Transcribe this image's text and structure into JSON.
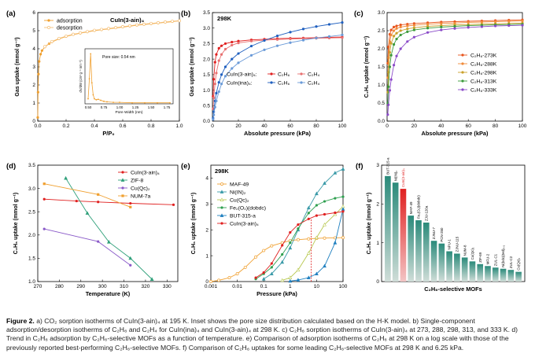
{
  "caption": {
    "label": "Figure 2.",
    "text": "a) CO₂ sorption isotherms of CuIn(3-ain)₄ at 195 K. Inset shows the pore size distribution calculated based on the H-K model. b) Single-component adsorption/desorption isotherms of C₂H₆ and C₂H₄ for CuIn(ina)₄ and CuIn(3-ain)₄ at 298 K. c) C₂H₆ sorption isotherms of CuIn(3-ain)₄ at 273, 288, 298, 313, and 333 K. d) Trend in C₂H₆ adsorption by C₂H₆-selective MOFs as a function of temperature. e) Comparison of adsorption isotherms of C₂H₆ at 298 K on a log scale with those of the previously reported best-performing C₂H₆-selective MOFs. f) Comparison of C₂H₆ uptakes for some leading C₂H₆-selective MOFs at 298 K and 6.25 kPa."
  },
  "chart_data": [
    {
      "panel": "a",
      "type": "line",
      "annotation": "CuIn(3-ain)₄",
      "xlabel": "P/P₀",
      "ylabel": "Gas uptake (mmol g⁻¹)",
      "xlim": [
        0,
        1.0
      ],
      "ylim": [
        0,
        6
      ],
      "xticks": [
        "0.0",
        "0.2",
        "0.4",
        "0.6",
        "0.8",
        "1.0"
      ],
      "yticks": [
        "0",
        "1",
        "2",
        "3",
        "4",
        "5",
        "6"
      ],
      "legend_position": "top-left",
      "colors": {
        "adsorption": "#f0a030",
        "desorption": "#f5c17a"
      },
      "series": [
        {
          "name": "adsorption",
          "marker": "filled-circle",
          "x": [
            0.0,
            0.002,
            0.005,
            0.01,
            0.02,
            0.03,
            0.05,
            0.08,
            0.1,
            0.15,
            0.2,
            0.25,
            0.3,
            0.35,
            0.4,
            0.45,
            0.5,
            0.55,
            0.6,
            0.65,
            0.7,
            0.75,
            0.8,
            0.85,
            0.9,
            0.95,
            1.0
          ],
          "y": [
            0.2,
            1.6,
            2.6,
            3.3,
            3.7,
            3.9,
            4.1,
            4.28,
            4.38,
            4.55,
            4.68,
            4.78,
            4.86,
            4.93,
            5.0,
            5.05,
            5.1,
            5.15,
            5.2,
            5.25,
            5.3,
            5.34,
            5.38,
            5.42,
            5.46,
            5.5,
            5.55
          ]
        },
        {
          "name": "desorption",
          "marker": "open-circle",
          "x": [
            1.0,
            0.95,
            0.9,
            0.85,
            0.8,
            0.75,
            0.7,
            0.65,
            0.6,
            0.55,
            0.5,
            0.45,
            0.4,
            0.35,
            0.3,
            0.25,
            0.2,
            0.15,
            0.1,
            0.05
          ],
          "y": [
            5.55,
            5.52,
            5.48,
            5.44,
            5.4,
            5.36,
            5.32,
            5.27,
            5.22,
            5.17,
            5.12,
            5.07,
            5.02,
            4.95,
            4.88,
            4.8,
            4.7,
            4.57,
            4.4,
            4.12
          ]
        }
      ],
      "inset": {
        "annotation": "Pore size: 0.54 nm",
        "xlabel": "Pore Width (nm)",
        "ylabel": "dV/dW (cm³ g⁻¹ nm⁻¹)",
        "xticks": [
          "0.50",
          "0.75",
          "1.00",
          "1.25",
          "1.50",
          "1.75"
        ],
        "x": [
          0.5,
          0.52,
          0.54,
          0.56,
          0.58,
          0.6,
          0.63,
          0.66,
          0.7,
          0.75,
          0.8,
          0.9,
          1.0,
          1.2,
          1.4,
          1.6,
          1.8
        ],
        "y": [
          0.1,
          0.5,
          1.0,
          0.42,
          0.18,
          0.1,
          0.08,
          0.09,
          0.07,
          0.05,
          0.04,
          0.03,
          0.03,
          0.02,
          0.02,
          0.02,
          0.02
        ]
      }
    },
    {
      "panel": "b",
      "type": "line",
      "annotation": "298K",
      "xlabel": "Absolute pressure (kPa)",
      "ylabel": "Gas uptake (mmol g⁻¹)",
      "xlim": [
        0,
        100
      ],
      "ylim": [
        0,
        3.5
      ],
      "xticks": [
        "0",
        "20",
        "40",
        "60",
        "80",
        "100"
      ],
      "yticks": [
        "0.0",
        "0.5",
        "1.0",
        "1.5",
        "2.0",
        "2.5",
        "3.0",
        "3.5"
      ],
      "legend_position": "center-left",
      "legend_rows": [
        {
          "label": "CuIn(3-ain)₄:",
          "entries": [
            "C₂H₆",
            "C₂H₄"
          ]
        },
        {
          "label": "CuIn(ina)₄:",
          "entries": [
            "C₂H₆",
            "C₂H₄"
          ]
        }
      ],
      "colors": {
        "CuIn(3-ain)₄ C₂H₆": "#e02020",
        "CuIn(3-ain)₄ C₂H₄": "#e87070",
        "CuIn(ina)₄ C₂H₆": "#1f5fbf",
        "CuIn(ina)₄ C₂H₄": "#6a9ad8"
      },
      "series": [
        {
          "name": "CuIn(3-ain)₄ C₂H₆",
          "marker": "filled-circle",
          "x": [
            0.5,
            1,
            2,
            3,
            5,
            7,
            10,
            15,
            20,
            30,
            40,
            50,
            60,
            70,
            80,
            90,
            100
          ],
          "y": [
            0.8,
            1.35,
            1.9,
            2.15,
            2.35,
            2.43,
            2.5,
            2.55,
            2.58,
            2.62,
            2.64,
            2.66,
            2.67,
            2.68,
            2.69,
            2.7,
            2.71
          ]
        },
        {
          "name": "CuIn(3-ain)₄ C₂H₄",
          "marker": "filled-circle",
          "x": [
            0.5,
            1,
            2,
            3,
            5,
            7,
            10,
            15,
            20,
            30,
            40,
            50,
            60,
            70,
            80,
            90,
            100
          ],
          "y": [
            0.4,
            0.75,
            1.2,
            1.55,
            1.95,
            2.15,
            2.32,
            2.45,
            2.52,
            2.58,
            2.61,
            2.63,
            2.65,
            2.66,
            2.67,
            2.68,
            2.69
          ]
        },
        {
          "name": "CuIn(ina)₄ C₂H₆",
          "marker": "filled-circle",
          "x": [
            0.5,
            1,
            2,
            3,
            5,
            7,
            10,
            15,
            20,
            30,
            40,
            50,
            60,
            70,
            80,
            90,
            100
          ],
          "y": [
            0.1,
            0.3,
            0.65,
            0.9,
            1.25,
            1.5,
            1.75,
            2.0,
            2.18,
            2.42,
            2.6,
            2.75,
            2.87,
            2.97,
            3.05,
            3.12,
            3.18
          ]
        },
        {
          "name": "CuIn(ina)₄ C₂H₄",
          "marker": "filled-circle",
          "x": [
            0.5,
            1,
            2,
            3,
            5,
            7,
            10,
            15,
            20,
            30,
            40,
            50,
            60,
            70,
            80,
            90,
            100
          ],
          "y": [
            0.05,
            0.2,
            0.45,
            0.65,
            0.95,
            1.2,
            1.45,
            1.7,
            1.88,
            2.12,
            2.3,
            2.43,
            2.53,
            2.61,
            2.68,
            2.73,
            2.78
          ]
        }
      ]
    },
    {
      "panel": "c",
      "type": "line",
      "xlabel": "Absolute pressure (kPa)",
      "ylabel": "C₂H₆ uptake (mmol g⁻¹)",
      "xlim": [
        0,
        100
      ],
      "ylim": [
        0,
        3.0
      ],
      "xticks": [
        "0",
        "20",
        "40",
        "60",
        "80",
        "100"
      ],
      "yticks": [
        "0.0",
        "0.5",
        "1.0",
        "1.5",
        "2.0",
        "2.5",
        "3.0"
      ],
      "legend_position": "center-right",
      "colors": {
        "C₂H₆-273K": "#e8541c",
        "C₂H₆-288K": "#f08a3a",
        "C₂H₆-298K": "#caa02a",
        "C₂H₆-313K": "#3a9a3a",
        "C₂H₆-333K": "#8a4ac8"
      },
      "series": [
        {
          "name": "C₂H₆-273K",
          "x": [
            0.5,
            1,
            2,
            3,
            5,
            7,
            10,
            15,
            20,
            30,
            40,
            50,
            60,
            70,
            80,
            90,
            100
          ],
          "y": [
            1.6,
            2.05,
            2.4,
            2.52,
            2.6,
            2.63,
            2.66,
            2.68,
            2.7,
            2.72,
            2.74,
            2.75,
            2.76,
            2.77,
            2.78,
            2.79,
            2.8
          ]
        },
        {
          "name": "C₂H₆-288K",
          "x": [
            0.5,
            1,
            2,
            3,
            5,
            7,
            10,
            15,
            20,
            30,
            40,
            50,
            60,
            70,
            80,
            90,
            100
          ],
          "y": [
            1.2,
            1.75,
            2.2,
            2.38,
            2.5,
            2.56,
            2.6,
            2.63,
            2.65,
            2.68,
            2.7,
            2.71,
            2.73,
            2.74,
            2.75,
            2.76,
            2.77
          ]
        },
        {
          "name": "C₂H₆-298K",
          "x": [
            0.5,
            1,
            2,
            3,
            5,
            7,
            10,
            15,
            20,
            30,
            40,
            50,
            60,
            70,
            80,
            90,
            100
          ],
          "y": [
            0.8,
            1.35,
            1.9,
            2.15,
            2.35,
            2.43,
            2.5,
            2.55,
            2.58,
            2.62,
            2.64,
            2.66,
            2.67,
            2.68,
            2.69,
            2.7,
            2.71
          ]
        },
        {
          "name": "C₂H₆-313K",
          "x": [
            0.5,
            1,
            2,
            3,
            5,
            7,
            10,
            15,
            20,
            30,
            40,
            50,
            60,
            70,
            80,
            90,
            100
          ],
          "y": [
            0.5,
            0.95,
            1.5,
            1.82,
            2.12,
            2.27,
            2.38,
            2.47,
            2.52,
            2.57,
            2.6,
            2.62,
            2.64,
            2.65,
            2.66,
            2.67,
            2.68
          ]
        },
        {
          "name": "C₂H₆-333K",
          "x": [
            0.5,
            1,
            2,
            3,
            5,
            7,
            10,
            15,
            20,
            30,
            40,
            50,
            60,
            70,
            80,
            90,
            100
          ],
          "y": [
            0.18,
            0.45,
            0.85,
            1.15,
            1.55,
            1.8,
            2.0,
            2.2,
            2.32,
            2.45,
            2.52,
            2.56,
            2.59,
            2.61,
            2.63,
            2.64,
            2.65
          ]
        }
      ]
    },
    {
      "panel": "d",
      "type": "line",
      "xlabel": "Temperature (K)",
      "ylabel": "C₂H₆ uptake (mmol g⁻¹)",
      "xlim": [
        270,
        335
      ],
      "ylim": [
        1.0,
        3.5
      ],
      "xticks": [
        "270",
        "280",
        "290",
        "300",
        "310",
        "320",
        "330"
      ],
      "yticks": [
        "1.0",
        "1.5",
        "2.0",
        "2.5",
        "3.0",
        "3.5"
      ],
      "legend_position": "top-right",
      "colors": {
        "CuIn(3-ain)₄": "#e02020",
        "ZIF-8": "#2fa07a",
        "Cu(Qc)₂": "#8a5ac8",
        "NUM-7a": "#f0a030"
      },
      "series": [
        {
          "name": "CuIn(3-ain)₄",
          "marker": "filled-circle",
          "x": [
            273,
            288,
            298,
            313,
            333
          ],
          "y": [
            2.77,
            2.73,
            2.71,
            2.68,
            2.65
          ]
        },
        {
          "name": "ZIF-8",
          "marker": "filled-triangle",
          "x": [
            283,
            293,
            303,
            313,
            323
          ],
          "y": [
            3.22,
            2.47,
            1.85,
            1.5,
            1.05
          ]
        },
        {
          "name": "Cu(Qc)₂",
          "marker": "filled-circle",
          "x": [
            273,
            298,
            313
          ],
          "y": [
            2.13,
            1.86,
            1.35
          ]
        },
        {
          "name": "NUM-7a",
          "marker": "filled-square",
          "x": [
            273,
            298,
            313
          ],
          "y": [
            3.1,
            2.87,
            2.6
          ]
        }
      ]
    },
    {
      "panel": "e",
      "type": "line",
      "annotation": "298K",
      "xlabel": "Pressure (kPa)",
      "ylabel": "C₂H₆ uptake (mmol g⁻¹)",
      "xscale": "log",
      "xlim": [
        0.001,
        100
      ],
      "ylim": [
        0,
        4.5
      ],
      "xticks": [
        "0.001",
        "0.01",
        "0.1",
        "1",
        "10",
        "100"
      ],
      "yticks": [
        "0",
        "1",
        "2",
        "3",
        "4"
      ],
      "legend_position": "top-left",
      "reference_line_x": 6.25,
      "colors": {
        "MAF-49": "#f0a030",
        "Ni(IN)₂": "#3a9aa8",
        "Cu(Qc)₂": "#b8c850",
        "Fe₂(O₂)(dobdc)": "#2fa050",
        "BUT-315-a": "#2080c0",
        "CuIn(3-ain)₄": "#e02020"
      },
      "series": [
        {
          "name": "MAF-49",
          "marker": "open-circle",
          "x": [
            0.001,
            0.002,
            0.005,
            0.01,
            0.02,
            0.05,
            0.1,
            0.2,
            0.5,
            1,
            2,
            5,
            10,
            20,
            50,
            100
          ],
          "y": [
            0.0,
            0.05,
            0.15,
            0.3,
            0.55,
            0.95,
            1.2,
            1.38,
            1.5,
            1.58,
            1.62,
            1.65,
            1.67,
            1.68,
            1.69,
            1.7
          ]
        },
        {
          "name": "Ni(IN)₂",
          "marker": "filled-triangle",
          "x": [
            0.1,
            0.2,
            0.5,
            1,
            2,
            5,
            10,
            20,
            50,
            100
          ],
          "y": [
            0.1,
            0.3,
            0.75,
            1.3,
            2.0,
            2.85,
            3.4,
            3.8,
            4.2,
            4.35
          ]
        },
        {
          "name": "Cu(Qc)₂",
          "marker": "open-triangle",
          "x": [
            0.5,
            1,
            2,
            5,
            10,
            20,
            50,
            100
          ],
          "y": [
            0.05,
            0.15,
            0.45,
            1.1,
            1.7,
            2.2,
            2.6,
            2.9
          ]
        },
        {
          "name": "Fe₂(O₂)(dobdc)",
          "marker": "filled-circle",
          "x": [
            0.05,
            0.1,
            0.2,
            0.5,
            1,
            2,
            5,
            10,
            20,
            50,
            100
          ],
          "y": [
            0.1,
            0.3,
            0.55,
            1.05,
            1.5,
            2.05,
            2.65,
            2.95,
            3.1,
            3.22,
            3.28
          ]
        },
        {
          "name": "BUT-315-a",
          "marker": "filled-triangle",
          "x": [
            1,
            2,
            5,
            10,
            20,
            50,
            100
          ],
          "y": [
            0.02,
            0.06,
            0.15,
            0.3,
            0.6,
            1.5,
            2.8
          ]
        },
        {
          "name": "CuIn(3-ain)₄",
          "marker": "filled-circle",
          "x": [
            0.05,
            0.1,
            0.2,
            0.5,
            1,
            2,
            5,
            10,
            20,
            50,
            100
          ],
          "y": [
            0.15,
            0.35,
            0.7,
            1.4,
            1.9,
            2.2,
            2.42,
            2.55,
            2.6,
            2.66,
            2.71
          ]
        }
      ]
    },
    {
      "panel": "f",
      "type": "bar",
      "xlabel": "C₂H₆-selective MOFs",
      "ylabel": "C₂H₆ uptake (mmol g⁻¹)",
      "ylim": [
        0,
        3
      ],
      "yticks": [
        "0",
        "1",
        "2",
        "3"
      ],
      "highlight": "CuIn(3-ain)₄",
      "colors": {
        "bar": "#2a8a7a",
        "highlight": "#e02020",
        "bar_light": "#d0ddd8"
      },
      "categories": [
        "BUT-315-a",
        "Ni(IN)₂",
        "CuIn(3-ain)₄",
        "MAF-49",
        "Fe₂(O₂)(dobdc)",
        "ZJU-120a",
        "ZJNU-7",
        "PCN-250",
        "NPU-1",
        "ZJNU-115",
        "NUM-8",
        "Cu(Qc)₂",
        "ZIF-69",
        "MFU-2",
        "ZUL-C1",
        "Ni(bdc)(ted)₀.₅",
        "ZUL-C2",
        "Cu(Qc)₂"
      ],
      "values": [
        2.72,
        2.55,
        2.39,
        1.7,
        1.58,
        1.52,
        1.05,
        0.98,
        0.78,
        0.72,
        0.62,
        0.52,
        0.45,
        0.4,
        0.36,
        0.33,
        0.3,
        0.25
      ]
    }
  ]
}
